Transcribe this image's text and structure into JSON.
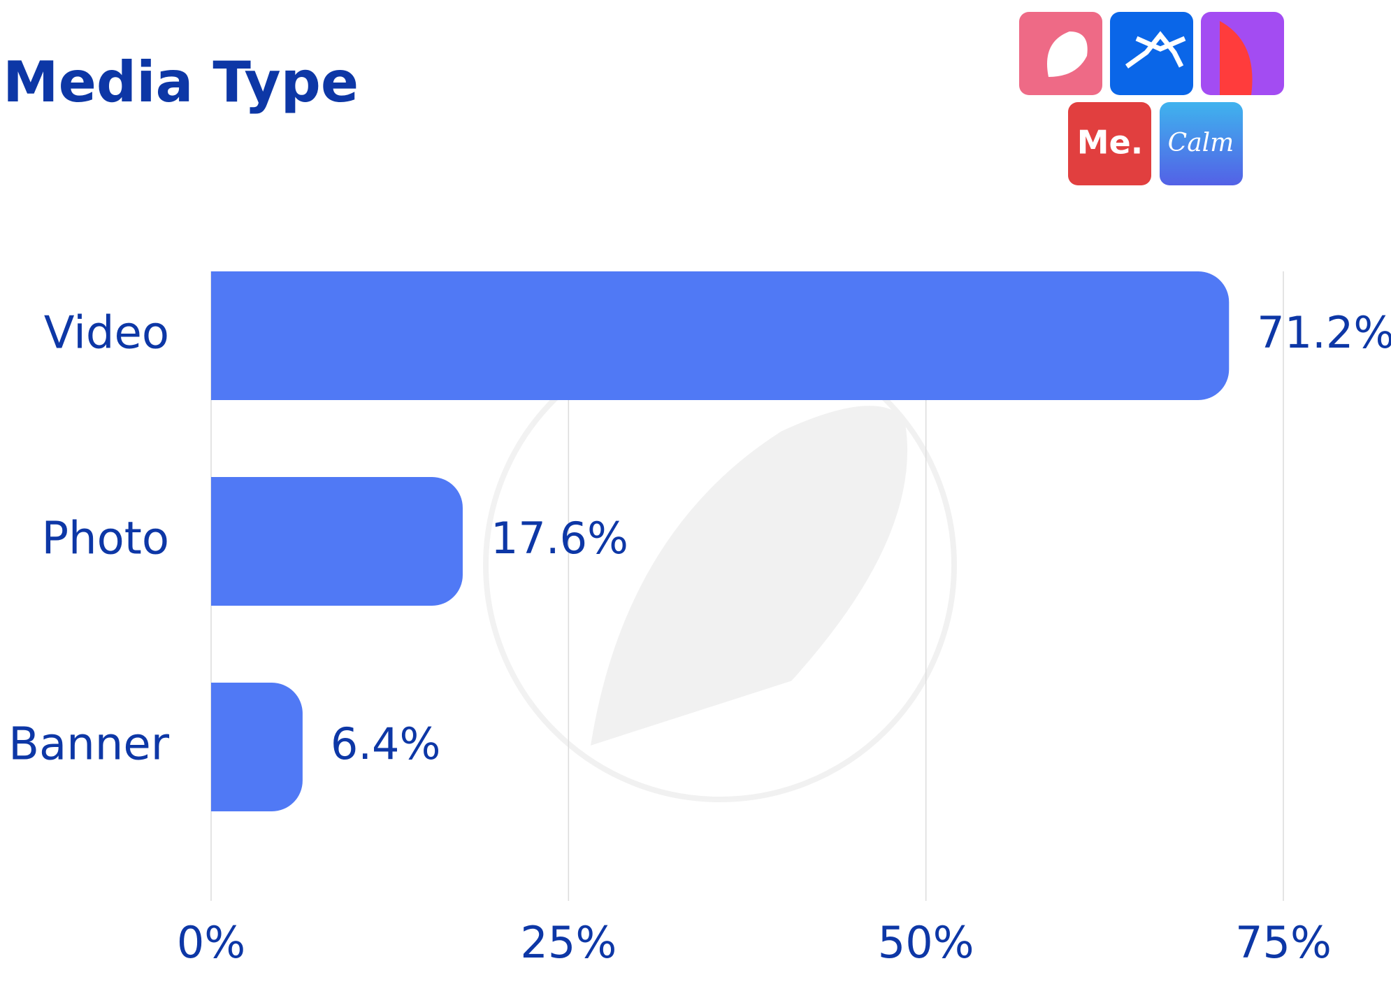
{
  "chart_data": {
    "type": "hbar",
    "title": "Media Type",
    "categories": [
      "Video",
      "Photo",
      "Banner"
    ],
    "values": [
      71.2,
      17.6,
      6.4
    ],
    "value_labels": [
      "71.2%",
      "17.6%",
      "6.4%"
    ],
    "color": "#5079f5",
    "xlim": [
      0,
      75
    ],
    "xticks": [
      {
        "value": 0,
        "label": "0%"
      },
      {
        "value": 25,
        "label": "25%"
      },
      {
        "value": 50,
        "label": "50%"
      },
      {
        "value": 75,
        "label": "75%"
      }
    ],
    "grid": true,
    "logos": [
      "Me.",
      "Calm"
    ]
  }
}
